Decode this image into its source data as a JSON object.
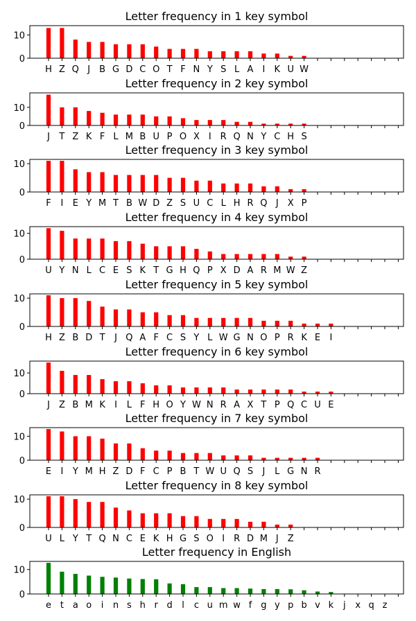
{
  "colors": {
    "cipher_bar": "#ff0000",
    "english_bar": "#008000"
  },
  "chart_data": [
    {
      "type": "bar",
      "title": "Letter frequency in 1 key symbol",
      "categories": [
        "H",
        "Z",
        "Q",
        "J",
        "B",
        "G",
        "D",
        "C",
        "O",
        "T",
        "F",
        "N",
        "Y",
        "S",
        "L",
        "A",
        "I",
        "K",
        "U",
        "W"
      ],
      "values": [
        13,
        13,
        8,
        7,
        7,
        6,
        6,
        6,
        5,
        4,
        4,
        4,
        3,
        3,
        3,
        3,
        2,
        2,
        1,
        1
      ],
      "ylim": [
        0,
        14
      ],
      "yticks": [
        "0",
        "10"
      ],
      "color": "#ff0000"
    },
    {
      "type": "bar",
      "title": "Letter frequency in 2 key symbol",
      "categories": [
        "J",
        "T",
        "Z",
        "K",
        "F",
        "L",
        "M",
        "B",
        "U",
        "P",
        "O",
        "X",
        "I",
        "R",
        "Q",
        "N",
        "Y",
        "C",
        "H",
        "S"
      ],
      "values": [
        17,
        10,
        10,
        8,
        7,
        6,
        6,
        6,
        5,
        5,
        4,
        3,
        3,
        3,
        2,
        2,
        1,
        1,
        1,
        1
      ],
      "ylim": [
        0,
        18
      ],
      "yticks": [
        "0",
        "10"
      ],
      "color": "#ff0000"
    },
    {
      "type": "bar",
      "title": "Letter frequency in 3 key symbol",
      "categories": [
        "F",
        "I",
        "E",
        "Y",
        "M",
        "T",
        "B",
        "W",
        "D",
        "Z",
        "S",
        "U",
        "C",
        "L",
        "H",
        "R",
        "Q",
        "J",
        "X",
        "P"
      ],
      "values": [
        11,
        11,
        8,
        7,
        7,
        6,
        6,
        6,
        6,
        5,
        5,
        4,
        4,
        3,
        3,
        3,
        2,
        2,
        1,
        1
      ],
      "ylim": [
        0,
        11.5
      ],
      "yticks": [
        "0",
        "10"
      ],
      "color": "#ff0000"
    },
    {
      "type": "bar",
      "title": "Letter frequency in 4 key symbol",
      "categories": [
        "U",
        "Y",
        "N",
        "L",
        "C",
        "E",
        "S",
        "K",
        "T",
        "G",
        "H",
        "Q",
        "P",
        "X",
        "D",
        "A",
        "R",
        "M",
        "W",
        "Z"
      ],
      "values": [
        12,
        11,
        8,
        8,
        8,
        7,
        7,
        6,
        5,
        5,
        5,
        4,
        3,
        2,
        2,
        2,
        2,
        2,
        1,
        1
      ],
      "ylim": [
        0,
        12.6
      ],
      "yticks": [
        "0",
        "10"
      ],
      "color": "#ff0000"
    },
    {
      "type": "bar",
      "title": "Letter frequency in 5 key symbol",
      "categories": [
        "H",
        "Z",
        "B",
        "D",
        "T",
        "J",
        "Q",
        "A",
        "F",
        "C",
        "S",
        "Y",
        "L",
        "W",
        "G",
        "N",
        "O",
        "P",
        "R",
        "K",
        "E",
        "I"
      ],
      "values": [
        11,
        10,
        10,
        9,
        7,
        6,
        6,
        5,
        5,
        4,
        4,
        3,
        3,
        3,
        3,
        3,
        2,
        2,
        2,
        1,
        1,
        1
      ],
      "ylim": [
        0,
        11.5
      ],
      "yticks": [
        "0",
        "10"
      ],
      "color": "#ff0000"
    },
    {
      "type": "bar",
      "title": "Letter frequency in 6 key symbol",
      "categories": [
        "J",
        "Z",
        "B",
        "M",
        "K",
        "I",
        "L",
        "F",
        "H",
        "O",
        "Y",
        "W",
        "N",
        "R",
        "A",
        "X",
        "T",
        "P",
        "Q",
        "C",
        "U",
        "E"
      ],
      "values": [
        15,
        11,
        9,
        9,
        7,
        6,
        6,
        5,
        4,
        4,
        3,
        3,
        3,
        3,
        2,
        2,
        2,
        2,
        2,
        1,
        1,
        1
      ],
      "ylim": [
        0,
        15.7
      ],
      "yticks": [
        "0",
        "10"
      ],
      "color": "#ff0000"
    },
    {
      "type": "bar",
      "title": "Letter frequency in 7 key symbol",
      "categories": [
        "E",
        "I",
        "Y",
        "M",
        "H",
        "Z",
        "D",
        "F",
        "C",
        "P",
        "B",
        "T",
        "W",
        "U",
        "Q",
        "S",
        "J",
        "L",
        "G",
        "N",
        "R"
      ],
      "values": [
        13,
        12,
        10,
        10,
        9,
        7,
        7,
        5,
        4,
        4,
        3,
        3,
        3,
        2,
        2,
        2,
        1,
        1,
        1,
        1,
        1
      ],
      "ylim": [
        0,
        13.6
      ],
      "yticks": [
        "0",
        "10"
      ],
      "color": "#ff0000"
    },
    {
      "type": "bar",
      "title": "Letter frequency in 8 key symbol",
      "categories": [
        "U",
        "L",
        "Y",
        "T",
        "Q",
        "N",
        "C",
        "E",
        "K",
        "H",
        "G",
        "S",
        "O",
        "I",
        "R",
        "D",
        "M",
        "J",
        "Z"
      ],
      "values": [
        11,
        11,
        10,
        9,
        9,
        7,
        6,
        5,
        5,
        5,
        4,
        4,
        3,
        3,
        3,
        2,
        2,
        1,
        1
      ],
      "ylim": [
        0,
        11.5
      ],
      "yticks": [
        "0",
        "10"
      ],
      "color": "#ff0000"
    },
    {
      "type": "bar",
      "title": "Letter frequency in English",
      "categories": [
        "e",
        "t",
        "a",
        "o",
        "i",
        "n",
        "s",
        "h",
        "r",
        "d",
        "l",
        "c",
        "u",
        "m",
        "w",
        "f",
        "g",
        "y",
        "p",
        "b",
        "v",
        "k",
        "j",
        "x",
        "q",
        "z"
      ],
      "values": [
        12.7,
        9.1,
        8.2,
        7.5,
        7.0,
        6.7,
        6.3,
        6.1,
        6.0,
        4.3,
        4.0,
        2.8,
        2.8,
        2.4,
        2.4,
        2.2,
        2.0,
        2.0,
        1.9,
        1.5,
        1.0,
        0.8,
        0.15,
        0.15,
        0.1,
        0.07
      ],
      "ylim": [
        0,
        13.3
      ],
      "yticks": [
        "0",
        "10"
      ],
      "color": "#008000"
    }
  ]
}
